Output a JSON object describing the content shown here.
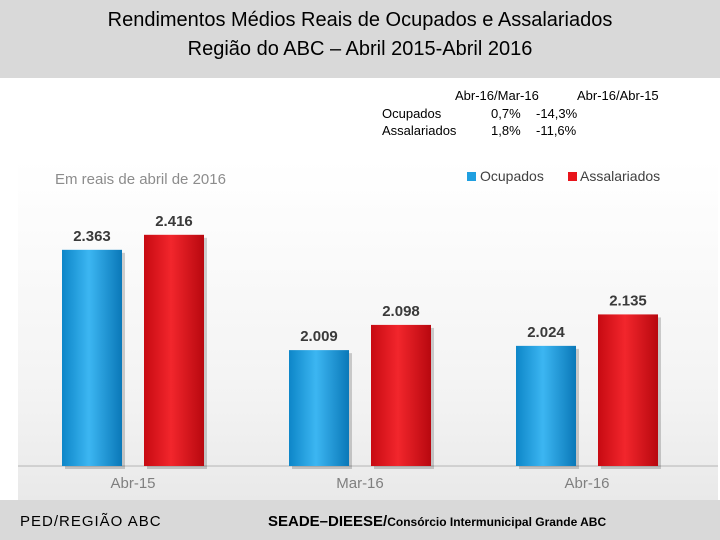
{
  "header": {
    "title_line1": "Rendimentos Médios Reais de Ocupados e Assalariados",
    "title_line2": "Região do ABC – Abril 2015-Abril 2016"
  },
  "variation_table": {
    "col1": "Abr-16/Mar-16",
    "col2": "Abr-16/Abr-15",
    "rows": [
      {
        "label": "Ocupados",
        "v1": "0,7%",
        "v2": "-14,3%"
      },
      {
        "label": "Assalariados",
        "v1": "1,8%",
        "v2": "-11,6%"
      }
    ]
  },
  "chart_data": {
    "type": "bar",
    "subtitle": "Em reais de abril de 2016",
    "categories": [
      "Abr-15",
      "Mar-16",
      "Abr-16"
    ],
    "series": [
      {
        "name": "Ocupados",
        "color": "#1f9fe0",
        "values": [
          2363,
          2009,
          2024
        ],
        "labels": [
          "2.363",
          "2.009",
          "2.024"
        ]
      },
      {
        "name": "Assalariados",
        "color": "#e8141b",
        "values": [
          2416,
          2098,
          2135
        ],
        "labels": [
          "2.416",
          "2.098",
          "2.135"
        ]
      }
    ],
    "ylim": [
      1600,
      2500
    ],
    "legend": "top-right",
    "grid": false
  },
  "footer": {
    "left": "PED/REGIÃO ABC",
    "right_main": "SEADE–DIEESE/",
    "right_small": "Consórcio Intermunicipal Grande ABC"
  }
}
